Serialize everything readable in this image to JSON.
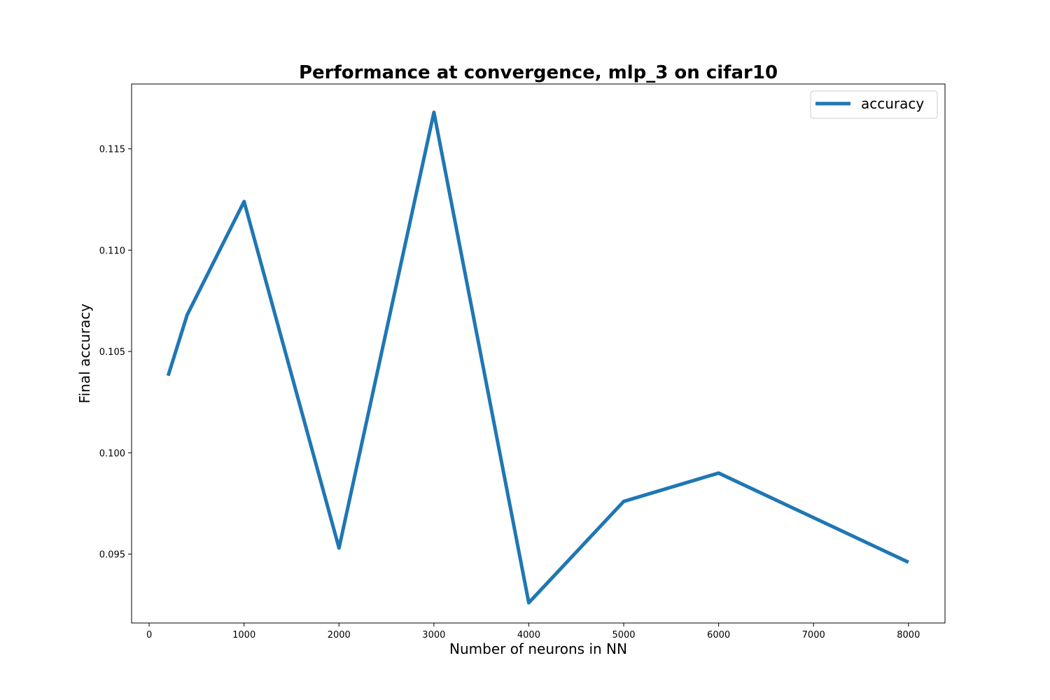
{
  "chart_data": {
    "type": "line",
    "title": "Performance at convergence, mlp_3 on cifar10",
    "xlabel": "Number of neurons in NN",
    "ylabel": "Final accuracy",
    "xlim": [
      -185,
      8385
    ],
    "ylim": [
      0.0916,
      0.1182
    ],
    "xticks": [
      0,
      1000,
      2000,
      3000,
      4000,
      5000,
      6000,
      7000,
      8000
    ],
    "xtick_labels": [
      "0",
      "1000",
      "2000",
      "3000",
      "4000",
      "5000",
      "6000",
      "7000",
      "8000"
    ],
    "yticks": [
      0.095,
      0.1,
      0.105,
      0.11,
      0.115
    ],
    "ytick_labels": [
      "0.095",
      "0.100",
      "0.105",
      "0.110",
      "0.115"
    ],
    "grid": false,
    "legend_position": "top-right",
    "series": [
      {
        "name": "accuracy",
        "color": "#1f77b4",
        "x": [
          200,
          400,
          1000,
          2000,
          3000,
          4000,
          5000,
          6000,
          8000
        ],
        "y": [
          0.1038,
          0.1068,
          0.1124,
          0.0953,
          0.1168,
          0.0926,
          0.0976,
          0.099,
          0.0946
        ]
      }
    ]
  }
}
